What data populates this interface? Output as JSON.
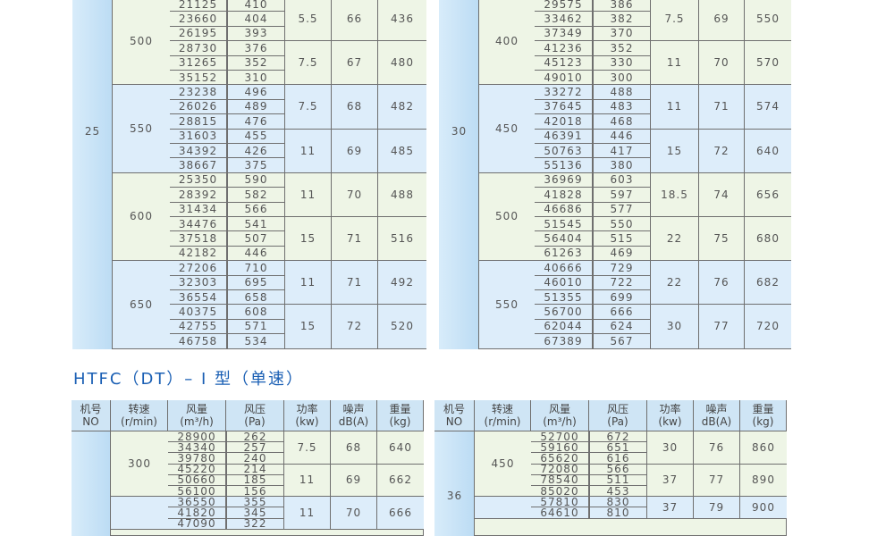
{
  "section_title": "HTFC（DT）– Ⅰ 型（单速）",
  "headers": [
    [
      "机号",
      "NO"
    ],
    [
      "转速",
      "(r/min)"
    ],
    [
      "风量",
      "(m³/h)"
    ],
    [
      "风压",
      "(Pa)"
    ],
    [
      "功率",
      "(kw)"
    ],
    [
      "噪声",
      "dB(A)"
    ],
    [
      "重量",
      "(kg)"
    ]
  ],
  "tables": [
    {
      "no": "25",
      "groups": [
        {
          "speed": "500",
          "subs": [
            {
              "power": "5.5",
              "noise": "66",
              "weight": "436",
              "rows": [
                [
                  "21125",
                  "410"
                ],
                [
                  "23660",
                  "404"
                ],
                [
                  "26195",
                  "393"
                ]
              ]
            },
            {
              "power": "7.5",
              "noise": "67",
              "weight": "480",
              "rows": [
                [
                  "28730",
                  "376"
                ],
                [
                  "31265",
                  "352"
                ],
                [
                  "35152",
                  "310"
                ]
              ]
            }
          ]
        },
        {
          "speed": "550",
          "subs": [
            {
              "power": "7.5",
              "noise": "68",
              "weight": "482",
              "rows": [
                [
                  "23238",
                  "496"
                ],
                [
                  "26026",
                  "489"
                ],
                [
                  "28815",
                  "476"
                ]
              ]
            },
            {
              "power": "11",
              "noise": "69",
              "weight": "485",
              "rows": [
                [
                  "31603",
                  "455"
                ],
                [
                  "34392",
                  "426"
                ],
                [
                  "38667",
                  "375"
                ]
              ]
            }
          ]
        },
        {
          "speed": "600",
          "subs": [
            {
              "power": "11",
              "noise": "70",
              "weight": "488",
              "rows": [
                [
                  "25350",
                  "590"
                ],
                [
                  "28392",
                  "582"
                ],
                [
                  "31434",
                  "566"
                ]
              ]
            },
            {
              "power": "15",
              "noise": "71",
              "weight": "516",
              "rows": [
                [
                  "34476",
                  "541"
                ],
                [
                  "37518",
                  "507"
                ],
                [
                  "42182",
                  "446"
                ]
              ]
            }
          ]
        },
        {
          "speed": "650",
          "subs": [
            {
              "power": "11",
              "noise": "71",
              "weight": "492",
              "rows": [
                [
                  "27206",
                  "710"
                ],
                [
                  "32303",
                  "695"
                ],
                [
                  "36554",
                  "658"
                ]
              ]
            },
            {
              "power": "15",
              "noise": "72",
              "weight": "520",
              "rows": [
                [
                  "40375",
                  "608"
                ],
                [
                  "42755",
                  "571"
                ],
                [
                  "46758",
                  "534"
                ]
              ]
            }
          ]
        }
      ]
    },
    {
      "no": "30",
      "groups": [
        {
          "speed": "400",
          "subs": [
            {
              "power": "7.5",
              "noise": "69",
              "weight": "550",
              "rows": [
                [
                  "29575",
                  "386"
                ],
                [
                  "33462",
                  "382"
                ],
                [
                  "37349",
                  "370"
                ]
              ]
            },
            {
              "power": "11",
              "noise": "70",
              "weight": "570",
              "rows": [
                [
                  "41236",
                  "352"
                ],
                [
                  "45123",
                  "330"
                ],
                [
                  "49010",
                  "300"
                ]
              ]
            }
          ]
        },
        {
          "speed": "450",
          "subs": [
            {
              "power": "11",
              "noise": "71",
              "weight": "574",
              "rows": [
                [
                  "33272",
                  "488"
                ],
                [
                  "37645",
                  "483"
                ],
                [
                  "42018",
                  "468"
                ]
              ]
            },
            {
              "power": "15",
              "noise": "72",
              "weight": "640",
              "rows": [
                [
                  "46391",
                  "446"
                ],
                [
                  "50763",
                  "417"
                ],
                [
                  "55136",
                  "380"
                ]
              ]
            }
          ]
        },
        {
          "speed": "500",
          "subs": [
            {
              "power": "18.5",
              "noise": "74",
              "weight": "656",
              "rows": [
                [
                  "36969",
                  "603"
                ],
                [
                  "41828",
                  "597"
                ],
                [
                  "46686",
                  "577"
                ]
              ]
            },
            {
              "power": "22",
              "noise": "75",
              "weight": "680",
              "rows": [
                [
                  "51545",
                  "550"
                ],
                [
                  "56404",
                  "515"
                ],
                [
                  "61263",
                  "469"
                ]
              ]
            }
          ]
        },
        {
          "speed": "550",
          "subs": [
            {
              "power": "22",
              "noise": "76",
              "weight": "682",
              "rows": [
                [
                  "40666",
                  "729"
                ],
                [
                  "46010",
                  "722"
                ],
                [
                  "51355",
                  "699"
                ]
              ]
            },
            {
              "power": "30",
              "noise": "77",
              "weight": "720",
              "rows": [
                [
                  "56700",
                  "666"
                ],
                [
                  "62044",
                  "624"
                ],
                [
                  "67389",
                  "567"
                ]
              ]
            }
          ]
        }
      ]
    },
    {
      "no": "",
      "groups": [
        {
          "speed": "300",
          "subs": [
            {
              "power": "7.5",
              "noise": "68",
              "weight": "640",
              "rows": [
                [
                  "28900",
                  "262"
                ],
                [
                  "34340",
                  "257"
                ],
                [
                  "39780",
                  "240"
                ]
              ]
            },
            {
              "power": "11",
              "noise": "69",
              "weight": "662",
              "rows": [
                [
                  "45220",
                  "214"
                ],
                [
                  "50660",
                  "185"
                ],
                [
                  "56100",
                  "156"
                ]
              ]
            }
          ]
        },
        {
          "speed": "",
          "subs": [
            {
              "power": "11",
              "noise": "70",
              "weight": "666",
              "rows": [
                [
                  "36550",
                  "355"
                ],
                [
                  "41820",
                  "345"
                ],
                [
                  "47090",
                  "322"
                ]
              ]
            }
          ]
        }
      ]
    },
    {
      "no": "36",
      "groups": [
        {
          "speed": "450",
          "subs": [
            {
              "power": "30",
              "noise": "76",
              "weight": "860",
              "rows": [
                [
                  "52700",
                  "672"
                ],
                [
                  "59160",
                  "651"
                ],
                [
                  "65620",
                  "616"
                ]
              ]
            },
            {
              "power": "37",
              "noise": "77",
              "weight": "890",
              "rows": [
                [
                  "72080",
                  "566"
                ],
                [
                  "78540",
                  "511"
                ],
                [
                  "85020",
                  "453"
                ]
              ]
            }
          ]
        },
        {
          "speed": "",
          "subs": [
            {
              "power": "37",
              "noise": "79",
              "weight": "900",
              "rows": [
                [
                  "57810",
                  "830"
                ],
                [
                  "64610",
                  "810"
                ]
              ]
            }
          ]
        }
      ]
    }
  ]
}
